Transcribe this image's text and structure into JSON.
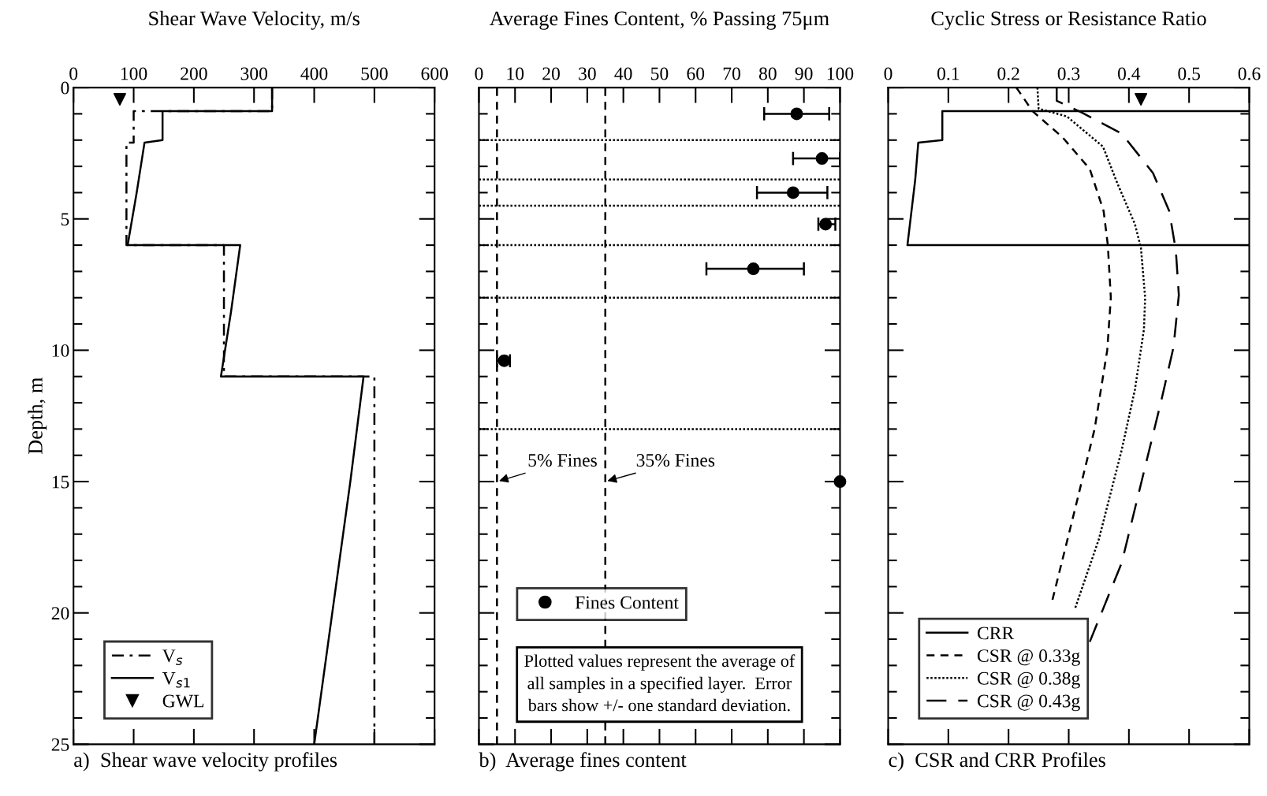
{
  "chart_data": [
    {
      "type": "line",
      "xlabel": "Shear Wave Velocity, m/s",
      "ylabel": "Depth, m",
      "xlim": [
        0,
        600
      ],
      "xticks": [
        0,
        100,
        200,
        300,
        400,
        500,
        600
      ],
      "ylim": [
        25,
        0
      ],
      "yticks": [
        0,
        5,
        10,
        15,
        20,
        25
      ],
      "legend": "bottom left",
      "series": [
        {
          "name": "V$_{s}$",
          "color": "#000000",
          "line_style": "dashdot",
          "x": [
            330,
            330,
            100,
            100,
            88,
            88,
            250,
            250,
            500,
            500
          ],
          "values": [
            0,
            0.9,
            0.9,
            2.1,
            2.1,
            6.0,
            6.0,
            11,
            11,
            25
          ]
        },
        {
          "name": "V$_{s1}$",
          "color": "#000000",
          "line_style": "solid",
          "x": [
            330,
            330,
            148,
            148,
            118,
            105,
            90,
            90,
            277,
            262,
            245,
            245,
            482,
            460,
            430,
            400
          ],
          "values": [
            0,
            0.9,
            0.9,
            2.0,
            2.1,
            4.0,
            6.0,
            6.0,
            6.0,
            8.5,
            11,
            11,
            11,
            15,
            20,
            25
          ]
        },
        {
          "name": "GWL",
          "type": "scatter",
          "marker": "triangle",
          "color": "#000000",
          "x": [
            77
          ],
          "values": [
            0.45
          ]
        }
      ],
      "annotations": [
        "a)  Shear wave velocity profiles"
      ]
    },
    {
      "type": "scatter",
      "xlabel": "Average Fines Content, % Passing 75μm",
      "xlim": [
        0,
        100
      ],
      "xticks": [
        0,
        10,
        20,
        30,
        40,
        50,
        60,
        70,
        80,
        90,
        100
      ],
      "ylim": [
        25,
        0
      ],
      "yticks": [
        {
          "value": 0,
          "label": null
        },
        {
          "value": 5,
          "label": null
        },
        {
          "value": 10,
          "label": null
        },
        {
          "value": 15,
          "label": null
        },
        {
          "value": 20,
          "label": null
        },
        {
          "value": 25,
          "label": null
        }
      ],
      "tick_labels": "x",
      "legend": "bottom left",
      "series": [
        {
          "name": "Fines Content",
          "color": "#000000",
          "marker": "circle",
          "x": [
            88,
            95,
            87,
            96,
            76,
            7,
            100
          ],
          "values": [
            1.0,
            2.7,
            4.0,
            5.2,
            6.9,
            10.4,
            15.0
          ],
          "xerrors": [
            [
              79,
              97
            ],
            [
              87,
              100
            ],
            [
              77,
              96.5
            ],
            [
              94,
              98.7
            ],
            [
              63,
              90
            ],
            [
              5,
              8.6
            ],
            null
          ]
        }
      ],
      "ref_lines": [
        {
          "axis": "x",
          "value": 5,
          "label": "5% Fines",
          "line_style": "dashed",
          "color": "#000000"
        },
        {
          "axis": "x",
          "value": 35,
          "label": "35% Fines",
          "line_style": "dashed",
          "color": "#000000"
        },
        {
          "axis": "y",
          "value": 2.0,
          "line_style": "dotted",
          "color": "#000000"
        },
        {
          "axis": "y",
          "value": 3.5,
          "line_style": "dotted",
          "color": "#000000"
        },
        {
          "axis": "y",
          "value": 4.5,
          "line_style": "dotted",
          "color": "#000000"
        },
        {
          "axis": "y",
          "value": 6.0,
          "line_style": "dotted",
          "color": "#000000"
        },
        {
          "axis": "y",
          "value": 8.0,
          "line_style": "dotted",
          "color": "#000000"
        },
        {
          "axis": "y",
          "value": 13.0,
          "line_style": "dotted",
          "color": "#000000"
        }
      ],
      "annotations": [
        "b)  Average fines content",
        "Plotted values represent the average of\nall samples in a specified layer.  Error\nbars show +/- one standard deviation."
      ]
    },
    {
      "type": "line",
      "xlabel": "Cyclic Stress or Resistance Ratio",
      "xlim": [
        0,
        0.6
      ],
      "xticks": [
        0,
        0.1,
        0.2,
        0.3,
        0.4,
        0.5,
        0.6
      ],
      "ylim": [
        25,
        0
      ],
      "yticks": [
        {
          "value": 0,
          "label": null
        },
        {
          "value": 5,
          "label": null
        },
        {
          "value": 10,
          "label": null
        },
        {
          "value": 15,
          "label": null
        },
        {
          "value": 20,
          "label": null
        },
        {
          "value": 25,
          "label": null
        }
      ],
      "tick_labels": "x",
      "legend": "bottom left",
      "series": [
        {
          "name": "CRR",
          "color": "#000000",
          "line_style": "solid",
          "x": [
            0.6,
            0.09,
            0.09,
            0.05,
            0.045,
            0.032,
            0.6
          ],
          "values": [
            0.9,
            0.9,
            2.0,
            2.1,
            3.5,
            6.0,
            6.0
          ]
        },
        {
          "name": "CSR @ 0.33g",
          "color": "#000000",
          "line_style": "dashed",
          "x": [
            0.213,
            0.24,
            0.29,
            0.335,
            0.358,
            0.365,
            0.37,
            0.364,
            0.343,
            0.311,
            0.273
          ],
          "values": [
            0,
            0.9,
            1.9,
            3.1,
            4.7,
            6.0,
            8.0,
            10.0,
            13.0,
            16.0,
            19.5
          ]
        },
        {
          "name": "CSR @ 0.38g",
          "color": "#000000",
          "line_style": "dotted",
          "x": [
            0.248,
            0.25,
            0.297,
            0.357,
            0.38,
            0.41,
            0.42,
            0.427,
            0.425,
            0.41,
            0.388,
            0.35,
            0.311
          ],
          "values": [
            0,
            0.8,
            1.1,
            2.25,
            3.6,
            5.2,
            6.1,
            8.0,
            9.2,
            11.5,
            13.8,
            17.2,
            19.8
          ]
        },
        {
          "name": "CSR @ 0.43g",
          "color": "#000000",
          "line_style": "longdashed",
          "x": [
            0.28,
            0.28,
            0.32,
            0.388,
            0.44,
            0.467,
            0.478,
            0.483,
            0.474,
            0.454,
            0.421,
            0.388,
            0.335
          ],
          "values": [
            0,
            0.5,
            0.93,
            1.75,
            3.25,
            4.7,
            6.2,
            7.9,
            9.9,
            11.9,
            15.0,
            18.1,
            21.1
          ]
        },
        {
          "type": "scatter",
          "marker": "triangle",
          "color": "#000000",
          "x": [
            0.42
          ],
          "values": [
            0.45
          ]
        }
      ],
      "annotations": [
        "c)  CSR and CRR Profiles"
      ]
    }
  ]
}
